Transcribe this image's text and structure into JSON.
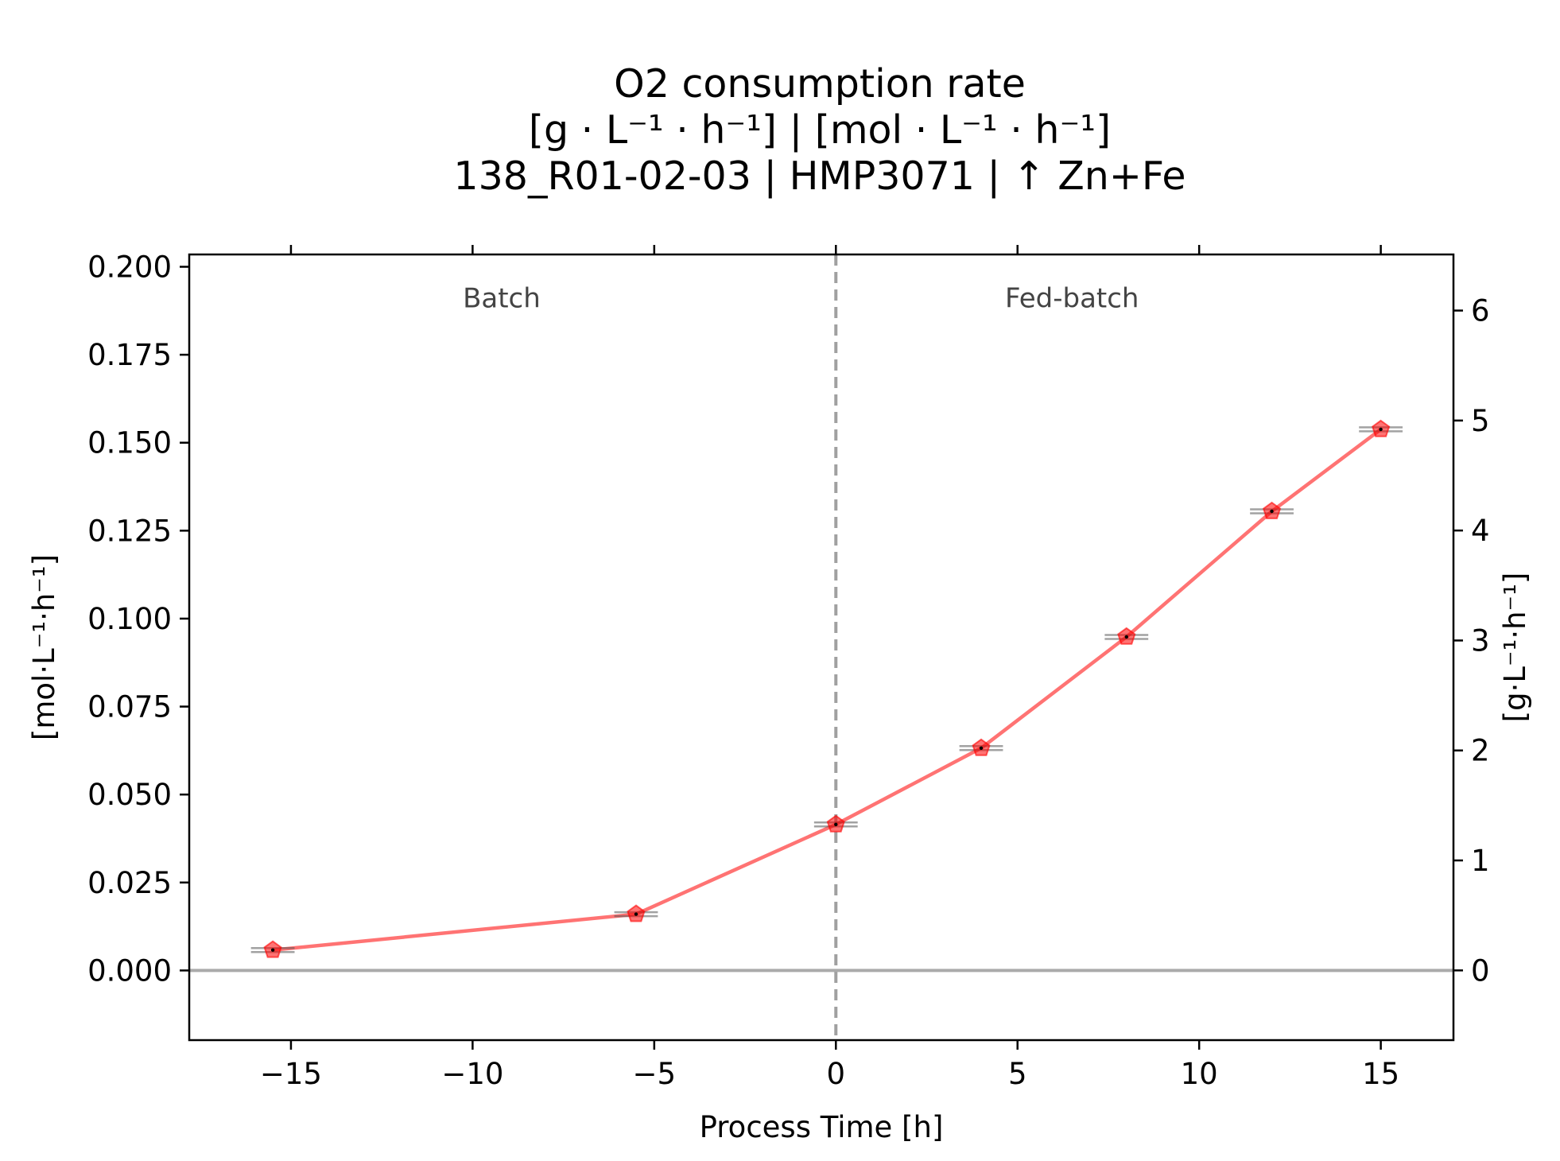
{
  "chart_data": {
    "type": "line",
    "title_lines": [
      "O2 consumption rate",
      "[g · L⁻¹ · h⁻¹]    |    [mol · L⁻¹ · h⁻¹]",
      "138_R01-02-03  |  HMP3071  |  ↑ Zn+Fe"
    ],
    "xlabel": "Process Time [h]",
    "ylabel_left": "[mol·L⁻¹·h⁻¹]",
    "ylabel_right": "[g·L⁻¹·h⁻¹]",
    "xlim": [
      -17.8,
      17.0
    ],
    "ylim_left": [
      -0.0198,
      0.2035
    ],
    "ylim_right": [
      -0.634,
      6.51
    ],
    "x_ticks": [
      -15,
      -10,
      -5,
      0,
      5,
      10,
      15
    ],
    "x_tick_labels": [
      "−15",
      "−10",
      "−5",
      "0",
      "5",
      "10",
      "15"
    ],
    "y_left_ticks": [
      0.0,
      0.025,
      0.05,
      0.075,
      0.1,
      0.125,
      0.15,
      0.175,
      0.2
    ],
    "y_left_tick_labels": [
      "0.000",
      "0.025",
      "0.050",
      "0.075",
      "0.100",
      "0.125",
      "0.150",
      "0.175",
      "0.200"
    ],
    "y_right_ticks": [
      0,
      1,
      2,
      3,
      4,
      5,
      6
    ],
    "y_right_tick_labels": [
      "0",
      "1",
      "2",
      "3",
      "4",
      "5",
      "6"
    ],
    "regions": [
      {
        "label": "Batch",
        "x": -9.2
      },
      {
        "label": "Fed-batch",
        "x": 6.5
      }
    ],
    "region_label_y": 0.1885,
    "phase_boundary_x": 0,
    "zero_line_y": 0,
    "series": [
      {
        "color": "#ff0000",
        "marker": "pentagon",
        "x": [
          -15.5,
          -5.5,
          0,
          4,
          8,
          12,
          15
        ],
        "y": [
          0.0058,
          0.016,
          0.0415,
          0.0632,
          0.0948,
          0.1305,
          0.1538
        ],
        "x_err": [
          0.6,
          0.6,
          0.6,
          0.6,
          0.6,
          0.6,
          0.6
        ]
      }
    ],
    "grid": false,
    "legend": "none"
  }
}
